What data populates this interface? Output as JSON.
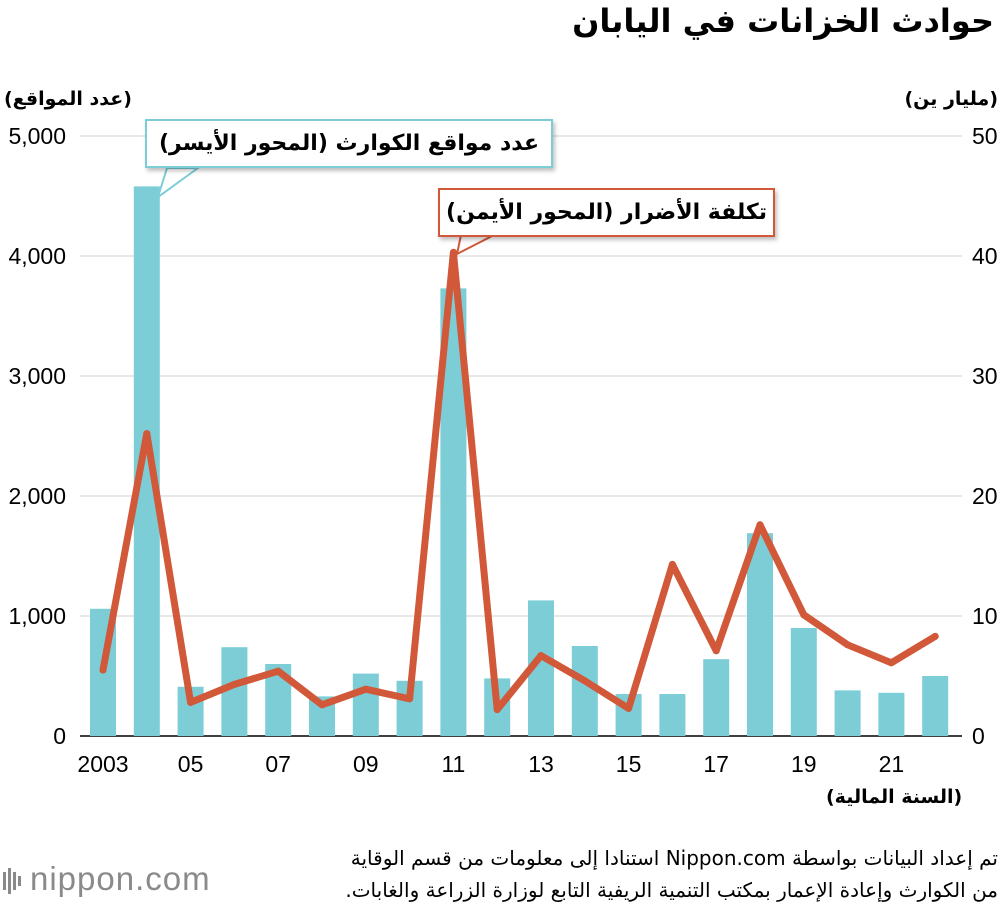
{
  "title": "حوادث الخزانات في اليابان",
  "left_axis_unit": "(عدد المواقع)",
  "right_axis_unit": "(مليار ين)",
  "x_axis_unit": "(السنة المالية)",
  "callouts": {
    "bars": "عدد مواقع الكوارث (المحور الأيسر)",
    "line": "تكلفة الأضرار (المحور الأيمن)"
  },
  "footer": {
    "line1": "تم إعداد البيانات بواسطة Nippon.com استنادا إلى معلومات من قسم الوقاية",
    "line2": "من الكوارث وإعادة الإعمار بمكتب التنمية الريفية التابع لوزارة الزراعة والغابات."
  },
  "logo": "nippon.com",
  "colors": {
    "bars": "#7ccdd6",
    "line": "#d2583a",
    "text": "#000000",
    "logo": "#8a8a8a"
  },
  "chart_data": {
    "type": "bar",
    "x": [
      "2003",
      "2004",
      "2005",
      "2006",
      "2007",
      "2008",
      "2009",
      "2010",
      "2011",
      "2012",
      "2013",
      "2014",
      "2015",
      "2016",
      "2017",
      "2018",
      "2019",
      "2020",
      "2021",
      "2022"
    ],
    "x_tick_labels": [
      "2003",
      "",
      "05",
      "",
      "07",
      "",
      "09",
      "",
      "11",
      "",
      "13",
      "",
      "15",
      "",
      "17",
      "",
      "19",
      "",
      "21",
      ""
    ],
    "series": [
      {
        "name": "عدد مواقع الكوارث (المحور الأيسر)",
        "type": "bar",
        "axis": "left",
        "values": [
          1060,
          4580,
          410,
          740,
          600,
          330,
          520,
          460,
          3730,
          480,
          1130,
          750,
          350,
          350,
          640,
          1690,
          900,
          380,
          360,
          500
        ]
      },
      {
        "name": "تكلفة الأضرار (المحور الأيمن)",
        "type": "line",
        "axis": "right",
        "values": [
          5.5,
          25.2,
          2.8,
          4.3,
          5.4,
          2.6,
          3.9,
          3.1,
          40.3,
          2.2,
          6.7,
          4.6,
          2.3,
          14.3,
          7.1,
          17.6,
          10.1,
          7.6,
          6.1,
          8.3
        ]
      }
    ],
    "y_left": {
      "range": [
        0,
        5000
      ],
      "ticks": [
        0,
        1000,
        2000,
        3000,
        4000,
        5000
      ],
      "tick_labels": [
        "0",
        "1,000",
        "2,000",
        "3,000",
        "4,000",
        "5,000"
      ]
    },
    "y_right": {
      "range": [
        0,
        50
      ],
      "ticks": [
        0,
        10,
        20,
        30,
        40,
        50
      ],
      "tick_labels": [
        "0",
        "10",
        "20",
        "30",
        "40",
        "50"
      ]
    },
    "grid": true,
    "gridline_color": "#d9d9d9"
  }
}
